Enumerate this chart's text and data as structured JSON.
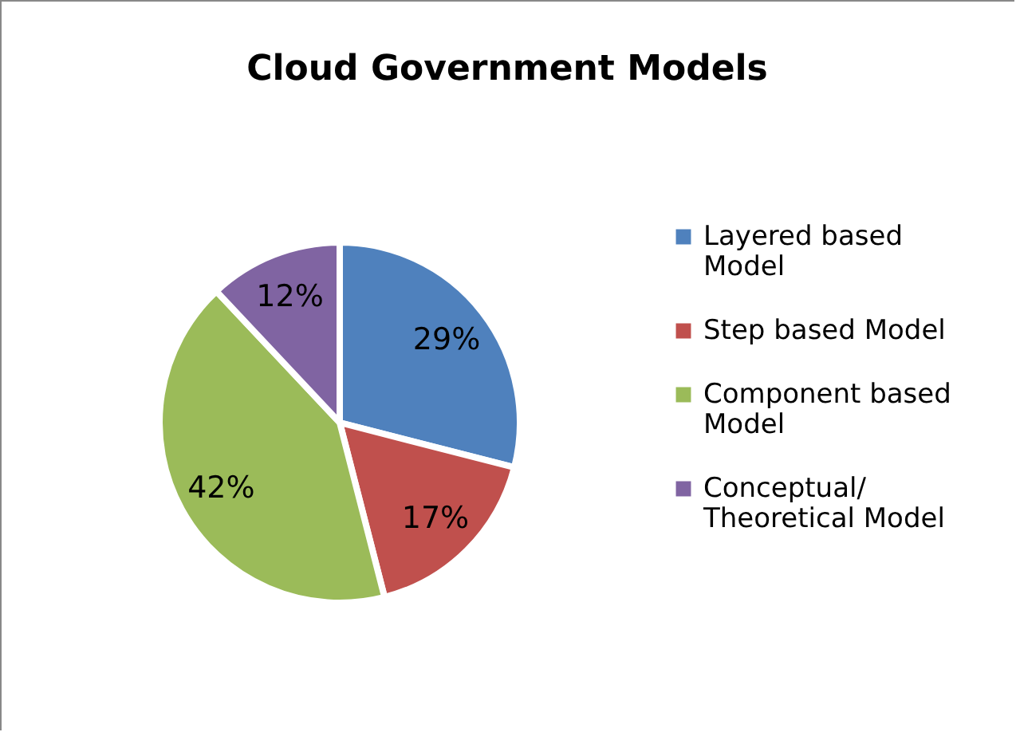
{
  "chart_data": {
    "type": "pie",
    "title": "Cloud Government Models",
    "categories": [
      "Layered based\nModel",
      "Step based Model",
      "Component based\nModel",
      "Conceptual/\nTheoretical Model"
    ],
    "values": [
      29,
      17,
      42,
      12
    ],
    "value_labels": [
      "29%",
      "17%",
      "42%",
      "12%"
    ],
    "colors": [
      "#4f81bd",
      "#c0504d",
      "#9bbb59",
      "#8064a2"
    ],
    "legend": "right"
  }
}
